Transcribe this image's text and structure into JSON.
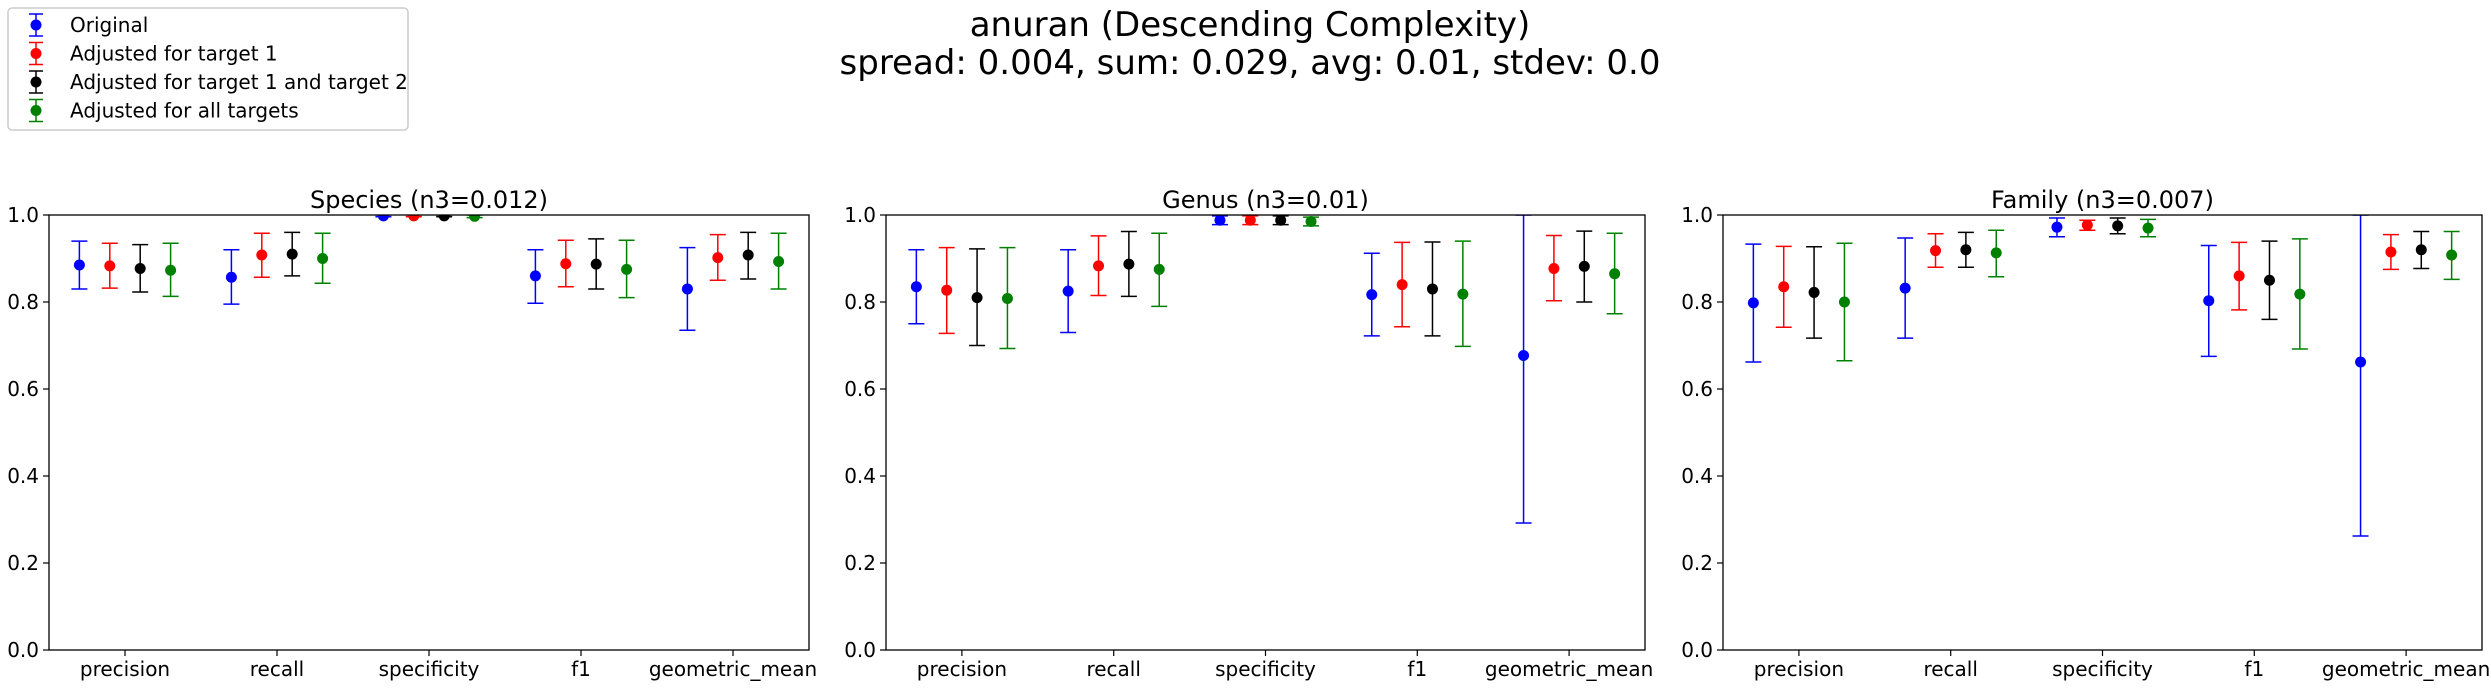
{
  "suptitle": {
    "line1": "anuran (Descending Complexity)",
    "line2": "spread: 0.004, sum: 0.029, avg: 0.01, stdev: 0.0"
  },
  "legend": {
    "placement": "top-left",
    "entries": [
      {
        "label": "Original",
        "color": "#0000ff"
      },
      {
        "label": "Adjusted for target 1",
        "color": "#ff0000"
      },
      {
        "label": "Adjusted for target 1 and target 2",
        "color": "#000000"
      },
      {
        "label": "Adjusted for all targets",
        "color": "#008000"
      }
    ]
  },
  "chart_data": [
    {
      "type": "scatter",
      "title": "Species (n3=0.012)",
      "categories": [
        "precision",
        "recall",
        "specificity",
        "f1",
        "geometric_mean"
      ],
      "ylim": [
        0.0,
        1.0
      ],
      "yticks": [
        "0.0",
        "0.2",
        "0.4",
        "0.6",
        "0.8",
        "1.0"
      ],
      "grid": false,
      "series": [
        {
          "name": "Original",
          "color": "#0000ff",
          "values": [
            0.885,
            0.857,
            0.998,
            0.86,
            0.83
          ],
          "err_low": [
            0.83,
            0.795,
            0.996,
            0.797,
            0.735
          ],
          "err_high": [
            0.94,
            0.92,
            1.0,
            0.92,
            0.925
          ]
        },
        {
          "name": "Adjusted for target 1",
          "color": "#ff0000",
          "values": [
            0.883,
            0.908,
            0.998,
            0.888,
            0.902
          ],
          "err_low": [
            0.832,
            0.857,
            0.996,
            0.835,
            0.85
          ],
          "err_high": [
            0.935,
            0.958,
            1.0,
            0.942,
            0.955
          ]
        },
        {
          "name": "Adjusted for target 1 and target 2",
          "color": "#000000",
          "values": [
            0.877,
            0.91,
            0.998,
            0.887,
            0.908
          ],
          "err_low": [
            0.823,
            0.86,
            0.996,
            0.83,
            0.853
          ],
          "err_high": [
            0.932,
            0.96,
            1.0,
            0.945,
            0.96
          ]
        },
        {
          "name": "Adjusted for all targets",
          "color": "#008000",
          "values": [
            0.873,
            0.9,
            0.997,
            0.875,
            0.893
          ],
          "err_low": [
            0.813,
            0.843,
            0.994,
            0.81,
            0.83
          ],
          "err_high": [
            0.935,
            0.958,
            1.0,
            0.942,
            0.958
          ]
        }
      ]
    },
    {
      "type": "scatter",
      "title": "Genus (n3=0.01)",
      "categories": [
        "precision",
        "recall",
        "specificity",
        "f1",
        "geometric_mean"
      ],
      "ylim": [
        0.0,
        1.0
      ],
      "yticks": [
        "0.0",
        "0.2",
        "0.4",
        "0.6",
        "0.8",
        "1.0"
      ],
      "grid": false,
      "series": [
        {
          "name": "Original",
          "color": "#0000ff",
          "values": [
            0.835,
            0.825,
            0.988,
            0.817,
            0.677
          ],
          "err_low": [
            0.75,
            0.73,
            0.978,
            0.722,
            0.292
          ],
          "err_high": [
            0.92,
            0.92,
            0.998,
            0.912,
            1.0
          ]
        },
        {
          "name": "Adjusted for target 1",
          "color": "#ff0000",
          "values": [
            0.827,
            0.883,
            0.988,
            0.84,
            0.877
          ],
          "err_low": [
            0.728,
            0.815,
            0.978,
            0.743,
            0.803
          ],
          "err_high": [
            0.925,
            0.952,
            0.998,
            0.937,
            0.953
          ]
        },
        {
          "name": "Adjusted for target 1 and target 2",
          "color": "#000000",
          "values": [
            0.81,
            0.887,
            0.988,
            0.83,
            0.882
          ],
          "err_low": [
            0.7,
            0.813,
            0.978,
            0.722,
            0.8
          ],
          "err_high": [
            0.922,
            0.962,
            0.998,
            0.938,
            0.963
          ]
        },
        {
          "name": "Adjusted for all targets",
          "color": "#008000",
          "values": [
            0.808,
            0.875,
            0.985,
            0.818,
            0.865
          ],
          "err_low": [
            0.693,
            0.79,
            0.975,
            0.698,
            0.773
          ],
          "err_high": [
            0.925,
            0.958,
            0.995,
            0.94,
            0.958
          ]
        }
      ]
    },
    {
      "type": "scatter",
      "title": "Family (n3=0.007)",
      "categories": [
        "precision",
        "recall",
        "specificity",
        "f1",
        "geometric_mean"
      ],
      "ylim": [
        0.0,
        1.0
      ],
      "yticks": [
        "0.0",
        "0.2",
        "0.4",
        "0.6",
        "0.8",
        "1.0"
      ],
      "grid": false,
      "series": [
        {
          "name": "Original",
          "color": "#0000ff",
          "values": [
            0.798,
            0.832,
            0.972,
            0.803,
            0.662
          ],
          "err_low": [
            0.662,
            0.717,
            0.95,
            0.675,
            0.262
          ],
          "err_high": [
            0.933,
            0.947,
            0.993,
            0.93,
            1.0
          ]
        },
        {
          "name": "Adjusted for target 1",
          "color": "#ff0000",
          "values": [
            0.835,
            0.918,
            0.977,
            0.86,
            0.915
          ],
          "err_low": [
            0.742,
            0.88,
            0.965,
            0.782,
            0.875
          ],
          "err_high": [
            0.928,
            0.957,
            0.988,
            0.937,
            0.955
          ]
        },
        {
          "name": "Adjusted for target 1 and target 2",
          "color": "#000000",
          "values": [
            0.822,
            0.92,
            0.975,
            0.85,
            0.92
          ],
          "err_low": [
            0.717,
            0.88,
            0.957,
            0.76,
            0.877
          ],
          "err_high": [
            0.927,
            0.96,
            0.993,
            0.94,
            0.962
          ]
        },
        {
          "name": "Adjusted for all targets",
          "color": "#008000",
          "values": [
            0.8,
            0.913,
            0.97,
            0.818,
            0.908
          ],
          "err_low": [
            0.665,
            0.858,
            0.95,
            0.692,
            0.852
          ],
          "err_high": [
            0.935,
            0.965,
            0.99,
            0.945,
            0.962
          ]
        }
      ]
    }
  ]
}
